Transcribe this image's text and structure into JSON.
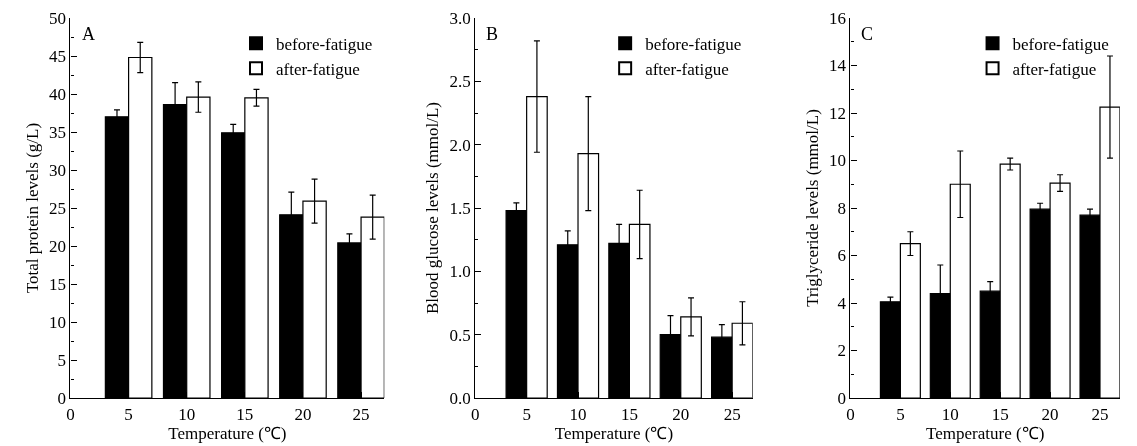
{
  "chart_data": [
    {
      "type": "bar",
      "title": "A",
      "xlabel": "Temperature (℃)",
      "ylabel": "Total protein levels (g/L)",
      "x": [
        5,
        10,
        15,
        20,
        25
      ],
      "xlim": [
        0,
        27
      ],
      "xticks": [
        0,
        5,
        10,
        15,
        20,
        25
      ],
      "ylim": [
        0,
        50
      ],
      "yticks": [
        0,
        5,
        10,
        15,
        20,
        25,
        30,
        35,
        40,
        45,
        50
      ],
      "legend": "top right",
      "series": [
        {
          "name": "before-fatigue",
          "color": "#000000",
          "values": [
            37.0,
            38.6,
            34.9,
            24.1,
            20.4
          ],
          "errors": [
            0.9,
            2.9,
            1.1,
            3.0,
            1.2
          ]
        },
        {
          "name": "after-fatigue",
          "color": "#ffffff",
          "values": [
            44.8,
            39.6,
            39.5,
            25.9,
            23.8
          ],
          "errors": [
            2.0,
            2.0,
            1.1,
            2.9,
            2.9
          ]
        }
      ]
    },
    {
      "type": "bar",
      "title": "B",
      "xlabel": "Temperature (℃)",
      "ylabel": "Blood glucose levels (mmol/L)",
      "x": [
        5,
        10,
        15,
        20,
        25
      ],
      "xlim": [
        0,
        27
      ],
      "xticks": [
        0,
        5,
        10,
        15,
        20,
        25
      ],
      "ylim": [
        0,
        3
      ],
      "yticks": [
        {
          "value": 0,
          "label": "0.0"
        },
        0.5,
        {
          "value": 1,
          "label": "1.0"
        },
        1.5,
        {
          "value": 2,
          "label": "2.0"
        },
        2.5,
        {
          "value": 3,
          "label": "3.0"
        }
      ],
      "legend": "top right",
      "series": [
        {
          "name": "before-fatigue",
          "color": "#000000",
          "values": [
            1.48,
            1.21,
            1.22,
            0.5,
            0.48
          ],
          "errors": [
            0.06,
            0.11,
            0.15,
            0.15,
            0.1
          ]
        },
        {
          "name": "after-fatigue",
          "color": "#ffffff",
          "values": [
            2.38,
            1.93,
            1.37,
            0.64,
            0.59
          ],
          "errors": [
            0.44,
            0.45,
            0.27,
            0.15,
            0.17
          ]
        }
      ]
    },
    {
      "type": "bar",
      "title": "C",
      "xlabel": "Temperature (℃)",
      "ylabel": "Triglyceride levels (mmol/L)",
      "x": [
        5,
        10,
        15,
        20,
        25
      ],
      "xlim": [
        0,
        27
      ],
      "xticks": [
        0,
        5,
        10,
        15,
        20,
        25
      ],
      "ylim": [
        0,
        16
      ],
      "yticks": [
        0,
        2,
        4,
        6,
        8,
        10,
        12,
        14,
        16
      ],
      "legend": "top right",
      "series": [
        {
          "name": "before-fatigue",
          "color": "#000000",
          "values": [
            4.05,
            4.4,
            4.5,
            7.95,
            7.7
          ],
          "errors": [
            0.2,
            1.2,
            0.4,
            0.25,
            0.25
          ]
        },
        {
          "name": "after-fatigue",
          "color": "#ffffff",
          "values": [
            6.5,
            9.0,
            9.85,
            9.05,
            12.25
          ],
          "errors": [
            0.5,
            1.4,
            0.25,
            0.35,
            2.15
          ]
        }
      ]
    }
  ]
}
